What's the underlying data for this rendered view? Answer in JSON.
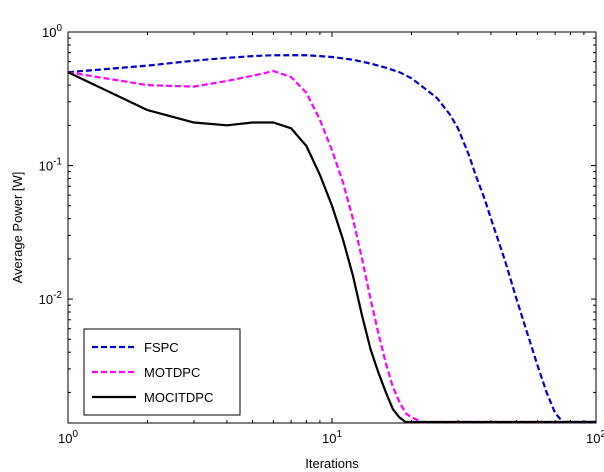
{
  "chart_data": {
    "type": "line",
    "title": "",
    "xlabel": "Iterations",
    "ylabel": "Average Power [W]",
    "xscale": "log",
    "yscale": "log",
    "xlim": [
      1,
      100
    ],
    "ylim": [
      0.00118,
      1
    ],
    "grid": false,
    "legend_position": "bottom-left",
    "x_ticks": [
      {
        "value": 1,
        "base": "10",
        "exp": "0"
      },
      {
        "value": 10,
        "base": "10",
        "exp": "1"
      },
      {
        "value": 100,
        "base": "10",
        "exp": "2"
      }
    ],
    "y_ticks": [
      {
        "value": 0.01,
        "base": "10",
        "exp": "-2"
      },
      {
        "value": 0.1,
        "base": "10",
        "exp": "-1"
      },
      {
        "value": 1,
        "base": "10",
        "exp": "0"
      }
    ],
    "series": [
      {
        "name": "FSPC",
        "color": "#0000cc",
        "style": "dashed",
        "points": [
          [
            1,
            0.5
          ],
          [
            2,
            0.56
          ],
          [
            3,
            0.61
          ],
          [
            4,
            0.64
          ],
          [
            5,
            0.66
          ],
          [
            6,
            0.67
          ],
          [
            7,
            0.67
          ],
          [
            8,
            0.67
          ],
          [
            9,
            0.66
          ],
          [
            10,
            0.65
          ],
          [
            12,
            0.62
          ],
          [
            14,
            0.58
          ],
          [
            16,
            0.54
          ],
          [
            18,
            0.5
          ],
          [
            20,
            0.45
          ],
          [
            22,
            0.39
          ],
          [
            25,
            0.32
          ],
          [
            28,
            0.24
          ],
          [
            30,
            0.19
          ],
          [
            33,
            0.12
          ],
          [
            35,
            0.085
          ],
          [
            38,
            0.055
          ],
          [
            40,
            0.04
          ],
          [
            45,
            0.02
          ],
          [
            50,
            0.01
          ],
          [
            55,
            0.0055
          ],
          [
            60,
            0.0032
          ],
          [
            65,
            0.002
          ],
          [
            70,
            0.0014
          ],
          [
            75,
            0.0012
          ],
          [
            80,
            0.0012
          ],
          [
            100,
            0.0012
          ]
        ]
      },
      {
        "name": "MOTDPC",
        "color": "#ff00ff",
        "style": "dashed",
        "points": [
          [
            1,
            0.5
          ],
          [
            2,
            0.4
          ],
          [
            3,
            0.39
          ],
          [
            4,
            0.43
          ],
          [
            5,
            0.47
          ],
          [
            6,
            0.51
          ],
          [
            7,
            0.46
          ],
          [
            8,
            0.35
          ],
          [
            9,
            0.22
          ],
          [
            10,
            0.13
          ],
          [
            11,
            0.075
          ],
          [
            12,
            0.04
          ],
          [
            13,
            0.02
          ],
          [
            14,
            0.01
          ],
          [
            15,
            0.0055
          ],
          [
            16,
            0.0033
          ],
          [
            17,
            0.0022
          ],
          [
            18,
            0.0017
          ],
          [
            19,
            0.0014
          ],
          [
            20,
            0.0013
          ],
          [
            22,
            0.0012
          ],
          [
            100,
            0.0012
          ]
        ]
      },
      {
        "name": "MOCITDPC",
        "color": "#000000",
        "style": "solid",
        "points": [
          [
            1,
            0.5
          ],
          [
            2,
            0.26
          ],
          [
            3,
            0.21
          ],
          [
            4,
            0.2
          ],
          [
            5,
            0.21
          ],
          [
            6,
            0.21
          ],
          [
            7,
            0.19
          ],
          [
            8,
            0.14
          ],
          [
            9,
            0.085
          ],
          [
            10,
            0.05
          ],
          [
            11,
            0.028
          ],
          [
            12,
            0.015
          ],
          [
            13,
            0.0075
          ],
          [
            14,
            0.0042
          ],
          [
            15,
            0.0028
          ],
          [
            16,
            0.002
          ],
          [
            17,
            0.0015
          ],
          [
            18,
            0.0013
          ],
          [
            19,
            0.0012
          ],
          [
            20,
            0.0012
          ],
          [
            100,
            0.0012
          ]
        ]
      }
    ]
  }
}
